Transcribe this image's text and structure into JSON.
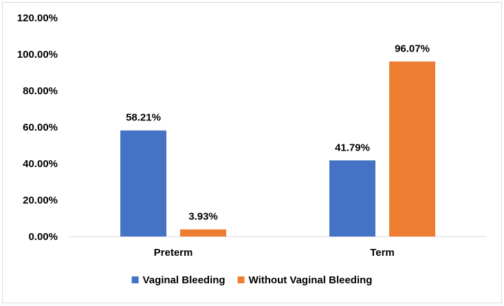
{
  "chart_data": {
    "type": "bar",
    "title": "",
    "xlabel": "",
    "ylabel": "",
    "categories": [
      "Preterm",
      "Term"
    ],
    "series": [
      {
        "name": "Vaginal Bleeding",
        "values": [
          58.21,
          41.79
        ],
        "labels": [
          "58.21%",
          "41.79%"
        ],
        "color": "#4472C4"
      },
      {
        "name": "Without Vaginal Bleeding",
        "values": [
          3.93,
          96.07
        ],
        "labels": [
          "3.93%",
          "96.07%"
        ],
        "color": "#ED7D31"
      }
    ],
    "ylim": [
      0,
      120
    ],
    "yticks": [
      0,
      20,
      40,
      60,
      80,
      100,
      120
    ],
    "ytick_labels": [
      "0.00%",
      "20.00%",
      "40.00%",
      "60.00%",
      "80.00%",
      "100.00%",
      "120.00%"
    ],
    "grid": false,
    "legend_position": "bottom",
    "border_color": "#D9D9D9",
    "axis_color": "#D9D9D9"
  }
}
